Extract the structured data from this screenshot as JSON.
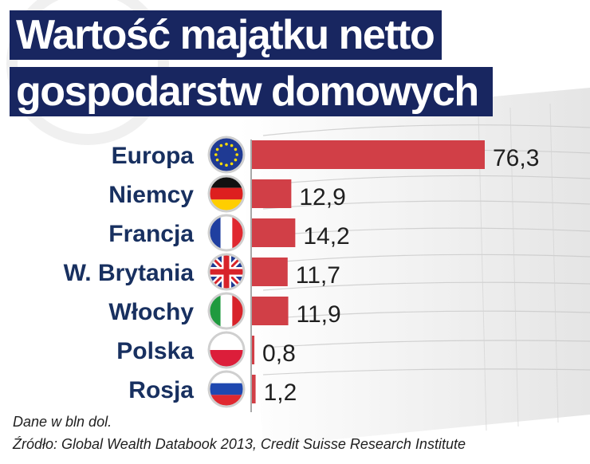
{
  "chart_data": {
    "type": "bar",
    "orientation": "horizontal",
    "title": "Wartość majątku netto gospodarstw domowych",
    "title_lines": [
      "Wartość majątku netto",
      "gospodarstw domowych"
    ],
    "categories": [
      "Europa",
      "Niemcy",
      "Francja",
      "W. Brytania",
      "Włochy",
      "Polska",
      "Rosja"
    ],
    "values": [
      76.3,
      12.9,
      14.2,
      11.7,
      11.9,
      0.8,
      1.2
    ],
    "value_labels": [
      "76,3",
      "12,9",
      "14,2",
      "11,7",
      "11,9",
      "0,8",
      "1,2"
    ],
    "flags": [
      "eu-flag-icon",
      "germany-flag-icon",
      "france-flag-icon",
      "uk-flag-icon",
      "italy-flag-icon",
      "poland-flag-icon",
      "russia-flag-icon"
    ],
    "unit_note": "Dane w bln dol.",
    "source": "Źródło: Global Wealth Databook 2013, Credit Suisse Research Institute",
    "bar_color": "#d13f47",
    "xlabel": "",
    "ylabel": "",
    "xlim": [
      0,
      76.3
    ],
    "legend": "none"
  },
  "colors": {
    "title_bg": "#182660",
    "title_text": "#ffffff",
    "label_text": "#183060",
    "value_text": "#1f1f1f"
  }
}
